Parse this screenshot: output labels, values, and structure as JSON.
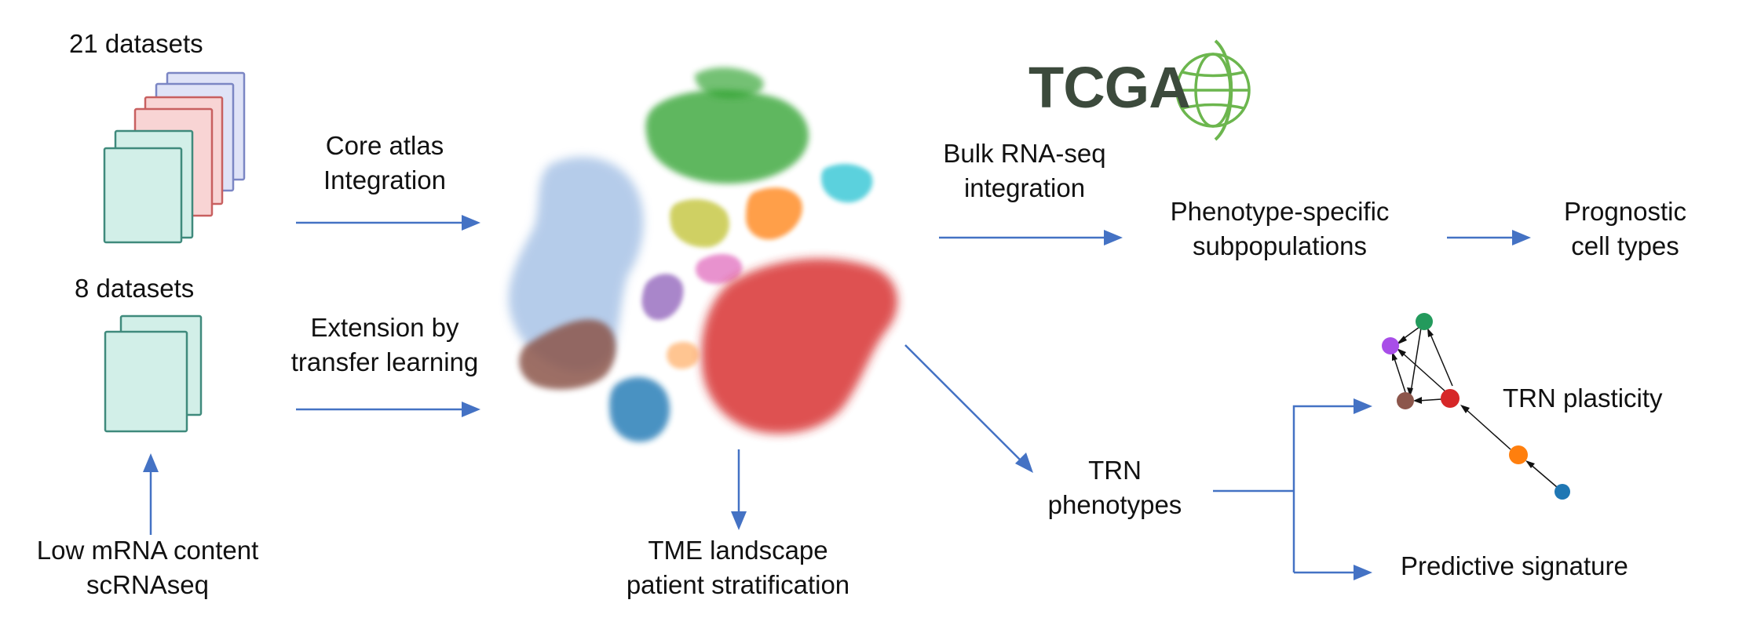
{
  "labels": {
    "datasets_21": "21 datasets",
    "datasets_8": "8 datasets",
    "core_atlas_1": "Core atlas",
    "core_atlas_2": "Integration",
    "extension_1": "Extension by",
    "extension_2": "transfer learning",
    "low_mrna_1": "Low mRNA content",
    "low_mrna_2": "scRNAseq",
    "tme_1": "TME landscape",
    "tme_2": "patient stratification",
    "bulk_1": "Bulk RNA-seq",
    "bulk_2": "integration",
    "phenotype_1": "Phenotype-specific",
    "phenotype_2": "subpopulations",
    "prognostic_1": "Prognostic",
    "prognostic_2": "cell types",
    "trn_1": "TRN",
    "trn_2": "phenotypes",
    "trn_plasticity": "TRN plasticity",
    "predictive": "Predictive signature"
  },
  "logo": {
    "text": "TCGA"
  },
  "colors": {
    "arrow": "#4472c4",
    "doc_teal_fill": "#d2efe8",
    "doc_teal_stroke": "#3f8a7c",
    "doc_red_fill": "#f8d4d4",
    "doc_red_stroke": "#c86060",
    "doc_blue_fill": "#dfe3f7",
    "doc_blue_stroke": "#7b86c4",
    "cluster_blue": "#aec7e8",
    "cluster_green": "#2ca02c",
    "cluster_red": "#d62728",
    "cluster_brown": "#8c564b",
    "cluster_steelblue": "#1f77b4",
    "cluster_orange": "#ff7f0e",
    "cluster_purple": "#9467bd",
    "cluster_cyan": "#17becf",
    "cluster_olive": "#bcbd22",
    "cluster_pink": "#e377c2"
  },
  "network": {
    "nodes": [
      {
        "name": "purple",
        "color": "#a84ee8"
      },
      {
        "name": "green",
        "color": "#239a5c"
      },
      {
        "name": "brown",
        "color": "#8c564b"
      },
      {
        "name": "red",
        "color": "#d62728"
      },
      {
        "name": "orange",
        "color": "#ff7f0e"
      },
      {
        "name": "blue",
        "color": "#1f77b4"
      }
    ]
  }
}
